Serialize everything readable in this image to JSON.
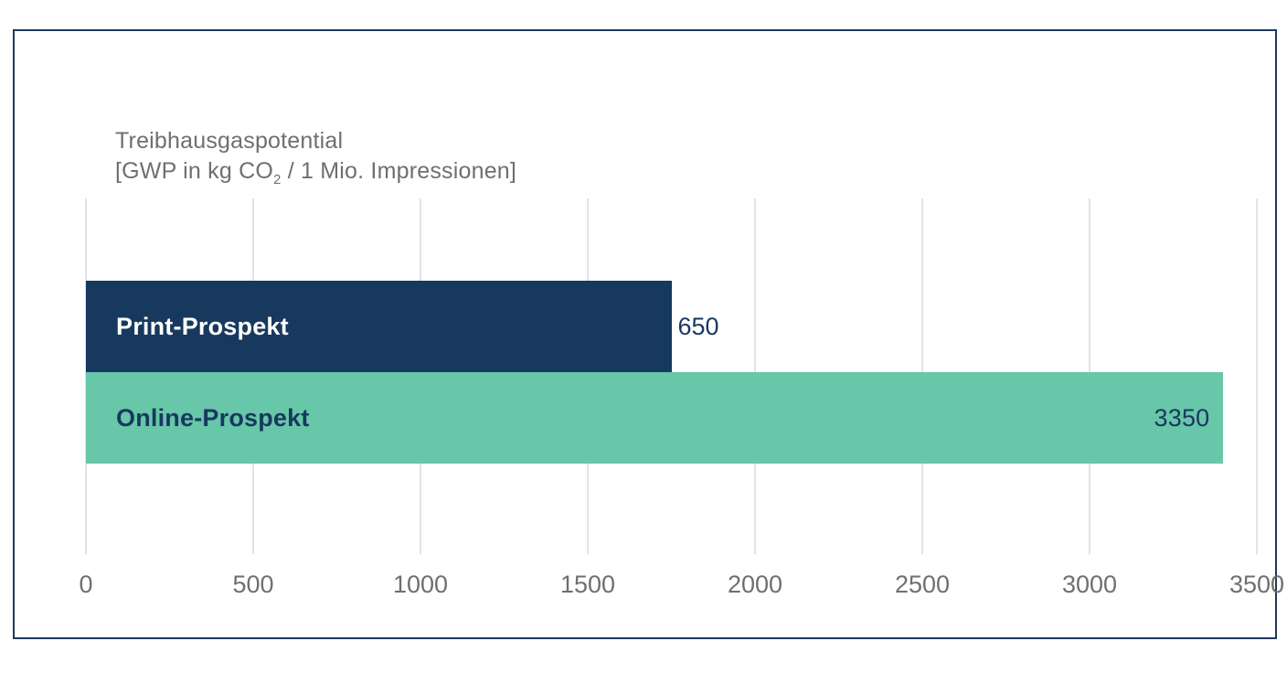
{
  "chart_data": {
    "type": "bar",
    "orientation": "horizontal",
    "title": "Treibhausgaspotential",
    "subtitle": "[GWP in kg CO2 / 1 Mio. Impressionen]",
    "subtitle_parts": {
      "prefix": "[GWP in kg CO",
      "sub": "2",
      "suffix": " / 1 Mio. Impressionen]"
    },
    "categories": [
      "Print-Prospekt",
      "Online-Prospekt"
    ],
    "values": [
      650,
      3350
    ],
    "xlabel": "",
    "ylabel": "",
    "xlim": [
      0,
      3500
    ],
    "x_ticks": [
      "0",
      "500",
      "1000",
      "1500",
      "2000",
      "2500",
      "3000",
      "3500"
    ],
    "grid": "vertical-gridlines",
    "legend": "none",
    "drawn_bar_extents_axis_units": [
      1750,
      3400
    ],
    "value_label_placement": [
      "outside-right",
      "inside-right"
    ],
    "colors": {
      "bars": [
        "#17395E",
        "#68C6A9"
      ],
      "bar_label_text": [
        "#FFFFFF",
        "#17395E"
      ],
      "value_text": "#17395E",
      "axis_text": "#6F6F6F",
      "title_text": "#6F6F6F",
      "gridline": "#E3E3E3",
      "frame_border": "#1C3A5F"
    }
  }
}
